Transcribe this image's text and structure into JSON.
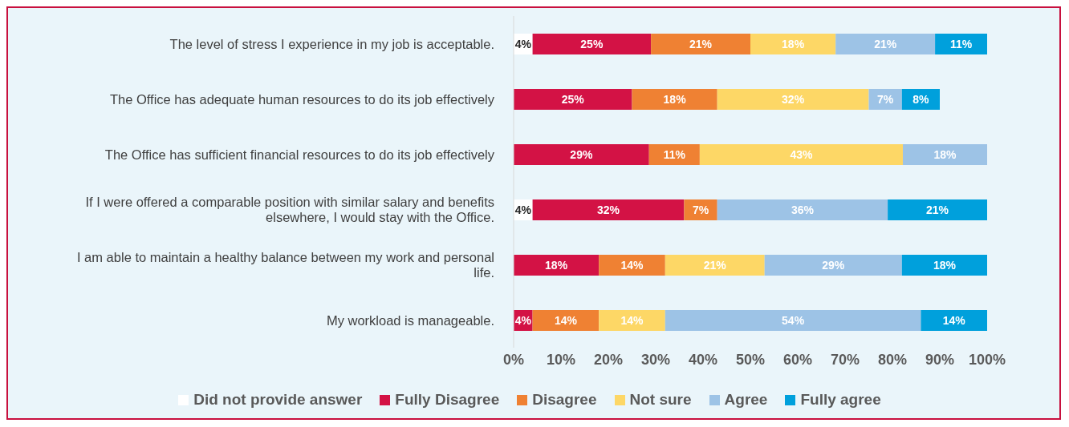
{
  "chart_data": {
    "type": "bar",
    "orientation": "horizontal",
    "stacked": true,
    "categories": [
      "The level of stress I experience in my job is acceptable.",
      "The Office has adequate human resources to do its job effectively",
      "The Office has sufficient financial resources to do its job effectively",
      "If I were offered a comparable position with similar salary and benefits elsewhere, I would stay with the Office.",
      "I am able to maintain a healthy balance between my work and personal life.",
      "My workload is manageable."
    ],
    "series": [
      {
        "name": "Did not provide answer",
        "color": "#ffffff",
        "values": [
          4,
          null,
          null,
          4,
          null,
          null
        ],
        "value_labels": [
          "4%",
          null,
          null,
          "4%",
          null,
          null
        ]
      },
      {
        "name": "Fully Disagree",
        "color": "#d31245",
        "values": [
          25,
          25,
          28.6,
          32,
          18,
          4
        ],
        "value_labels": [
          "25%",
          "25%",
          "29%",
          "32%",
          "18%",
          "4%"
        ]
      },
      {
        "name": "Disagree",
        "color": "#ef8133",
        "values": [
          21,
          18,
          10.7,
          7,
          14,
          14
        ],
        "value_labels": [
          "21%",
          "18%",
          "11%",
          "7%",
          "14%",
          "14%"
        ]
      },
      {
        "name": "Not sure",
        "color": "#fdd766",
        "values": [
          18,
          32,
          42.9,
          null,
          21,
          14
        ],
        "value_labels": [
          "18%",
          "32%",
          "43%",
          null,
          "21%",
          "14%"
        ]
      },
      {
        "name": "Agree",
        "color": "#9dc3e6",
        "values": [
          21,
          7,
          17.8,
          36,
          29,
          54
        ],
        "value_labels": [
          "21%",
          "7%",
          "18%",
          "36%",
          "29%",
          "54%"
        ]
      },
      {
        "name": "Fully agree",
        "color": "#00a0dc",
        "values": [
          11,
          8,
          null,
          21,
          18,
          14
        ],
        "value_labels": [
          "11%",
          "8%",
          null,
          "21%",
          "18%",
          "14%"
        ]
      }
    ],
    "xlim": [
      0,
      100
    ],
    "xticks": [
      {
        "value": 0,
        "label": "0%"
      },
      {
        "value": 10,
        "label": "10%"
      },
      {
        "value": 20,
        "label": "20%"
      },
      {
        "value": 30,
        "label": "30%"
      },
      {
        "value": 40,
        "label": "40%"
      },
      {
        "value": 50,
        "label": "50%"
      },
      {
        "value": 60,
        "label": "60%"
      },
      {
        "value": 70,
        "label": "70%"
      },
      {
        "value": 80,
        "label": "80%"
      },
      {
        "value": 90,
        "label": "90%"
      },
      {
        "value": 100,
        "label": "100%"
      }
    ],
    "grid": false,
    "legend": "bottom"
  }
}
